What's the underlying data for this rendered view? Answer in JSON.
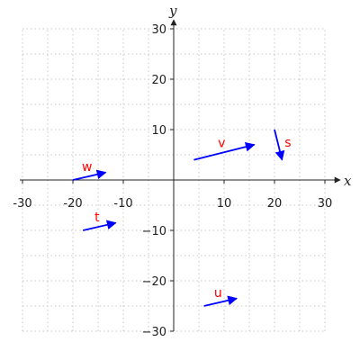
{
  "chart_data": {
    "type": "vector-field",
    "title": "",
    "xlabel": "x",
    "ylabel": "y",
    "xlim": [
      -30,
      30
    ],
    "ylim": [
      -30,
      30
    ],
    "x_ticks": [
      -30,
      -20,
      -10,
      10,
      20,
      30
    ],
    "y_ticks": [
      -30,
      -20,
      -10,
      10,
      20,
      30
    ],
    "x_tick_labels": [
      "-30",
      "-20",
      "-10",
      "10",
      "20",
      "30"
    ],
    "y_tick_labels": [
      "−30",
      "−20",
      "−10",
      "10",
      "20",
      "30"
    ],
    "grid": true,
    "vector_color": "#0000ff",
    "label_color": "#ff0000",
    "vectors": [
      {
        "label": "w",
        "x0": -20,
        "y0": 0,
        "x1": -13.5,
        "y1": 1.5
      },
      {
        "label": "v",
        "x0": 4,
        "y0": 4,
        "x1": 16,
        "y1": 7
      },
      {
        "label": "s",
        "x0": 20,
        "y0": 10,
        "x1": 21.5,
        "y1": 4
      },
      {
        "label": "t",
        "x0": -18,
        "y0": -10,
        "x1": -11.5,
        "y1": -8.5
      },
      {
        "label": "u",
        "x0": 6,
        "y0": -25,
        "x1": 12.5,
        "y1": -23.5
      }
    ]
  }
}
